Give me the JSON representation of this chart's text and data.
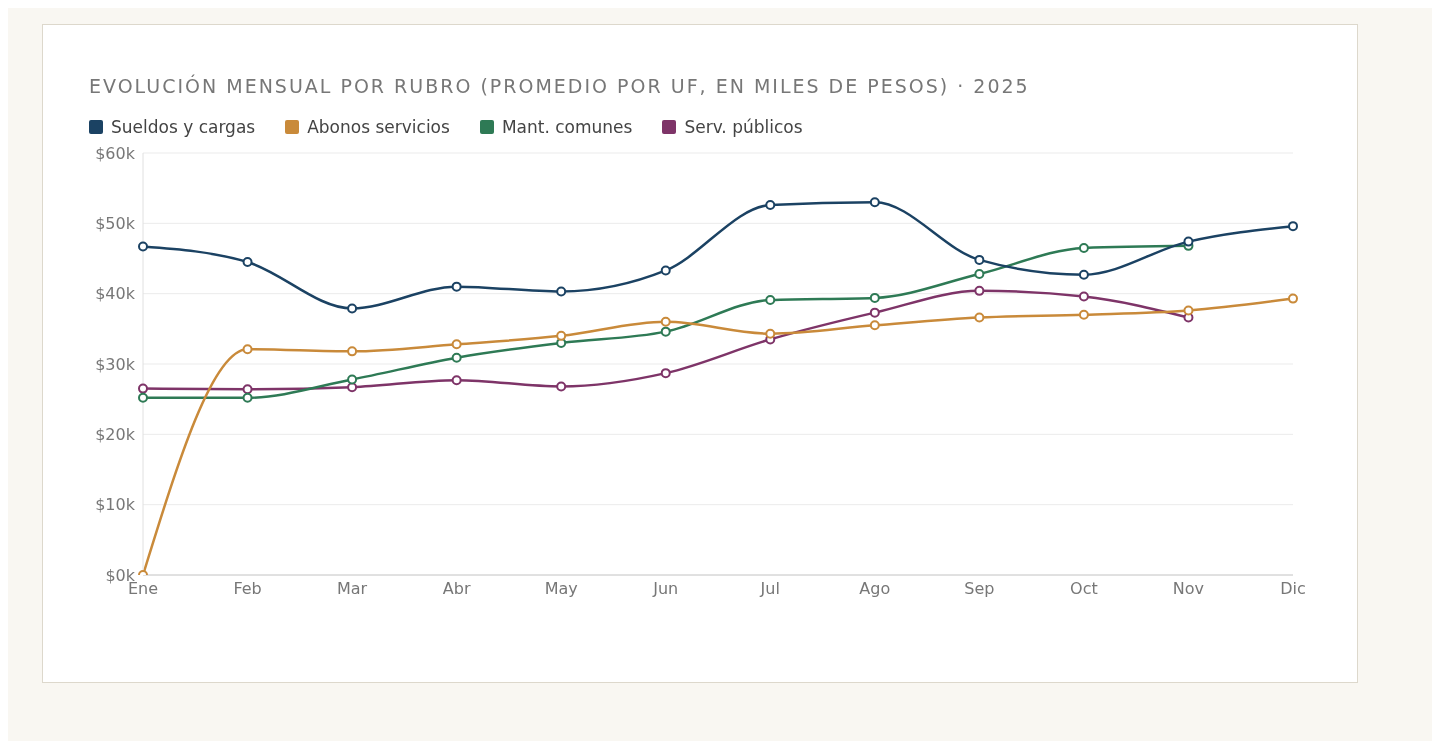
{
  "chart_data": {
    "type": "line",
    "title": "EVOLUCIÓN MENSUAL POR RUBRO (PROMEDIO POR UF, EN MILES DE PESOS) · 2025",
    "categories": [
      "Ene",
      "Feb",
      "Mar",
      "Abr",
      "May",
      "Jun",
      "Jul",
      "Ago",
      "Sep",
      "Oct",
      "Nov",
      "Dic"
    ],
    "series": [
      {
        "name": "Sueldos y cargas",
        "color": "#1b4263",
        "values": [
          46.7,
          44.5,
          37.9,
          41.0,
          40.3,
          43.3,
          52.6,
          53.0,
          44.8,
          42.7,
          47.4,
          49.6
        ]
      },
      {
        "name": "Abonos servicios",
        "color": "#c98a3a",
        "values": [
          0,
          32.1,
          31.8,
          32.8,
          34.0,
          36.0,
          34.3,
          35.5,
          36.6,
          37.0,
          37.6,
          39.3
        ]
      },
      {
        "name": "Mant. comunes",
        "color": "#2e7a55",
        "values": [
          25.2,
          25.2,
          27.8,
          30.9,
          33.0,
          34.6,
          39.1,
          39.4,
          42.8,
          46.5,
          46.8,
          null
        ]
      },
      {
        "name": "Serv. públicos",
        "color": "#7e3468",
        "values": [
          26.5,
          26.4,
          26.7,
          27.7,
          26.8,
          28.7,
          33.5,
          37.3,
          40.4,
          39.6,
          36.6,
          null
        ]
      }
    ],
    "ylim": [
      0,
      60
    ],
    "yticks": [
      {
        "value": 0,
        "label": "$0k"
      },
      {
        "value": 10,
        "label": "$10k"
      },
      {
        "value": 20,
        "label": "$20k"
      },
      {
        "value": 30,
        "label": "$30k"
      },
      {
        "value": 40,
        "label": "$40k"
      },
      {
        "value": 50,
        "label": "$50k"
      },
      {
        "value": 60,
        "label": "$60k"
      }
    ],
    "grid": "y",
    "legend": "top left",
    "marker": "circle",
    "line_style": "solid"
  }
}
